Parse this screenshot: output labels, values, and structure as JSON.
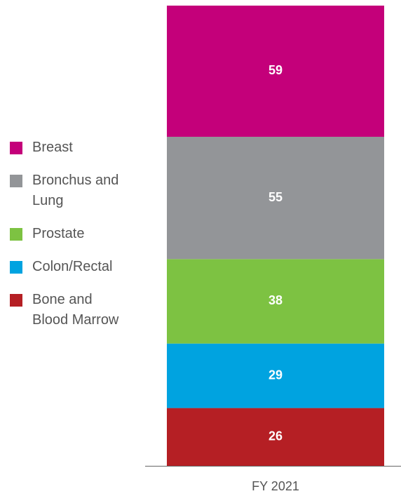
{
  "chart_data": {
    "type": "stacked_bar",
    "categories": [
      "FY 2021"
    ],
    "series": [
      {
        "name": "Breast",
        "color": "#c4007a",
        "values": [
          59
        ]
      },
      {
        "name": "Bronchus and Lung",
        "color": "#939598",
        "values": [
          55
        ]
      },
      {
        "name": "Prostate",
        "color": "#7dc242",
        "values": [
          38
        ]
      },
      {
        "name": "Colon/Rectal",
        "color": "#00a3e0",
        "values": [
          29
        ]
      },
      {
        "name": "Bone and Blood Marrow",
        "color": "#b51f24",
        "values": [
          26
        ]
      }
    ]
  }
}
